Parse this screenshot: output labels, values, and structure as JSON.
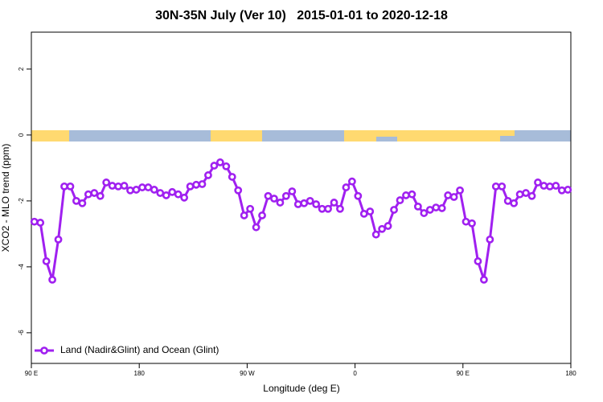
{
  "chart_data": {
    "type": "line",
    "title": "30N-35N July (Ver 10)   2015-01-01 to 2020-12-18",
    "xlabel": "Longitude (deg E)",
    "ylabel": "XCO2 - MLO trend (ppm)",
    "xlim": [
      90,
      540
    ],
    "ylim": [
      -6.93,
      3.12
    ],
    "xticks": [
      {
        "value": 90,
        "label": "90 E"
      },
      180,
      {
        "value": 270,
        "label": "90 W"
      },
      {
        "value": 360,
        "label": "0"
      },
      {
        "value": 450,
        "label": "90 E"
      },
      {
        "value": 540,
        "label": "180"
      }
    ],
    "yticks": [
      2,
      0,
      -2,
      -4,
      -6
    ],
    "legend": "bottom-left",
    "x": [
      92.5,
      97.5,
      102.5,
      107.5,
      112.5,
      117.5,
      122.5,
      127.5,
      132.5,
      137.5,
      142.5,
      147.5,
      152.5,
      157.5,
      162.5,
      167.5,
      172.5,
      177.5,
      182.5,
      187.5,
      192.5,
      197.5,
      202.5,
      207.5,
      212.5,
      217.5,
      222.5,
      227.5,
      232.5,
      237.5,
      242.5,
      247.5,
      252.5,
      257.5,
      262.5,
      267.5,
      272.5,
      277.5,
      282.5,
      287.5,
      292.5,
      297.5,
      302.5,
      307.5,
      312.5,
      317.5,
      322.5,
      327.5,
      332.5,
      337.5,
      342.5,
      347.5,
      352.5,
      357.5,
      362.5,
      367.5,
      372.5,
      377.5,
      382.5,
      387.5,
      392.5,
      397.5,
      402.5,
      407.5,
      412.5,
      417.5,
      422.5,
      427.5,
      432.5,
      437.5,
      442.5,
      447.5,
      452.5,
      457.5,
      462.5,
      467.5,
      472.5,
      477.5,
      482.5,
      487.5,
      492.5,
      497.5,
      502.5,
      507.5,
      512.5,
      517.5,
      522.5,
      527.5,
      532.5,
      537.5
    ],
    "series": [
      {
        "name": "Land (Nadir&Glint) and Ocean (Glint)",
        "color": "#a020f0",
        "values": [
          -2.63,
          -2.66,
          -3.83,
          -4.39,
          -3.17,
          -1.56,
          -1.56,
          -2.0,
          -2.07,
          -1.8,
          -1.76,
          -1.85,
          -1.44,
          -1.54,
          -1.56,
          -1.54,
          -1.68,
          -1.66,
          -1.59,
          -1.59,
          -1.66,
          -1.76,
          -1.83,
          -1.73,
          -1.8,
          -1.9,
          -1.56,
          -1.51,
          -1.49,
          -1.22,
          -0.93,
          -0.83,
          -0.95,
          -1.27,
          -1.68,
          -2.44,
          -2.24,
          -2.8,
          -2.44,
          -1.85,
          -1.93,
          -2.05,
          -1.85,
          -1.71,
          -2.1,
          -2.07,
          -2.0,
          -2.1,
          -2.24,
          -2.24,
          -2.05,
          -2.24,
          -1.59,
          -1.41,
          -1.85,
          -2.39,
          -2.32,
          -3.02,
          -2.85,
          -2.76,
          -2.27,
          -1.98,
          -1.83,
          -1.8,
          -2.17,
          -2.37,
          -2.27,
          -2.2,
          -2.22,
          -1.83,
          -1.88,
          -1.68,
          -2.63,
          -2.68,
          -3.83,
          -4.39,
          -3.17,
          -1.56,
          -1.56,
          -2.0,
          -2.07,
          -1.8,
          -1.76,
          -1.85,
          -1.44,
          -1.54,
          -1.56,
          -1.54,
          -1.68,
          -1.66
        ]
      }
    ]
  }
}
